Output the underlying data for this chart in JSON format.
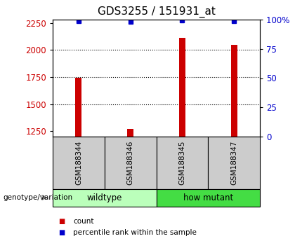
{
  "title": "GDS3255 / 151931_at",
  "samples": [
    "GSM188344",
    "GSM188346",
    "GSM188345",
    "GSM188347"
  ],
  "bar_values": [
    1740,
    1270,
    2110,
    2050
  ],
  "percentile_values": [
    99,
    98,
    99.5,
    99
  ],
  "bar_color": "#cc0000",
  "percentile_color": "#0000cc",
  "ylim_left": [
    1200,
    2280
  ],
  "ylim_right": [
    0,
    100
  ],
  "yticks_left": [
    1250,
    1500,
    1750,
    2000,
    2250
  ],
  "yticks_right": [
    0,
    25,
    50,
    75,
    100
  ],
  "grid_values": [
    2000,
    1750,
    1500
  ],
  "groups": [
    {
      "label": "wildtype",
      "samples": [
        0,
        1
      ],
      "color": "#bbffbb"
    },
    {
      "label": "how mutant",
      "samples": [
        2,
        3
      ],
      "color": "#44dd44"
    }
  ],
  "legend_count_label": "count",
  "legend_percentile_label": "percentile rank within the sample",
  "genotype_label": "genotype/variation",
  "bar_width": 0.12,
  "sample_box_color": "#cccccc",
  "title_fontsize": 11,
  "tick_fontsize": 8.5
}
